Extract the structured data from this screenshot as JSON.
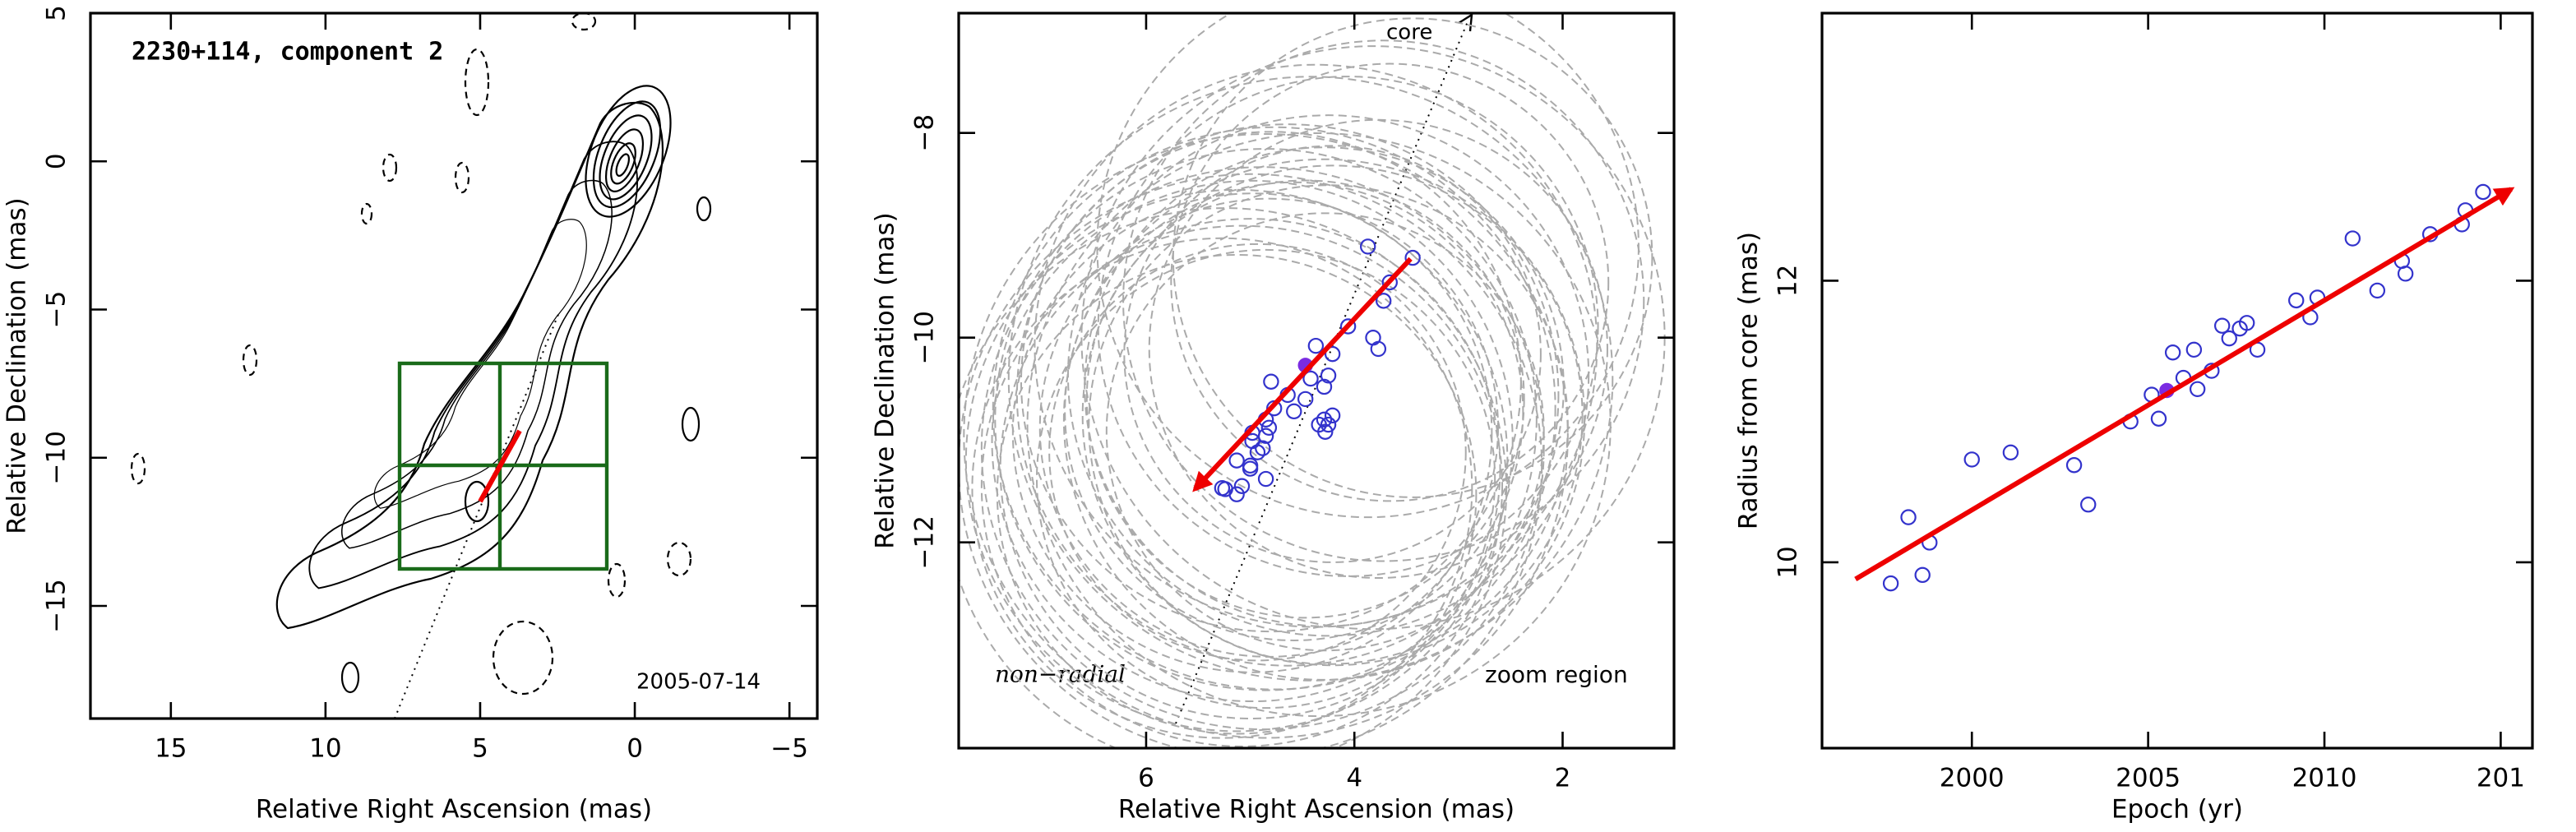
{
  "chart_data": [
    {
      "type": "map",
      "title": "2230+114, component 2",
      "annotation": "2005-07-14",
      "xlabel": "Relative Right Ascension (mas)",
      "ylabel": "Relative Declination (mas)",
      "xlim": [
        17.6,
        -5.9
      ],
      "ylim": [
        -18.8,
        5
      ],
      "xticks": [
        15,
        10,
        5,
        0,
        {
          "value": -5,
          "label": "−5"
        }
      ],
      "yticks": [
        5,
        0,
        {
          "value": -5,
          "label": "−5"
        },
        {
          "value": -10,
          "label": "−10"
        },
        {
          "value": -15,
          "label": "−15"
        }
      ]
    },
    {
      "type": "scatter",
      "xlabel": "Relative Right Ascension (mas)",
      "ylabel": "Relative Declination (mas)",
      "annotations": [
        "core",
        "non−radial",
        "zoom region"
      ],
      "xlim": [
        7.8,
        0.93
      ],
      "ylim": [
        -14.01,
        -6.83
      ],
      "xticks": [
        6,
        4,
        2
      ],
      "yticks": [
        {
          "value": -8,
          "label": "−8"
        },
        {
          "value": -10,
          "label": "−10"
        },
        {
          "value": -12,
          "label": "−12"
        }
      ],
      "color": "#3333cc",
      "size_color": "#aaaaaa",
      "x": [
        3.44,
        3.87,
        3.66,
        3.72,
        3.82,
        3.77,
        4.06,
        4.37,
        4.21,
        4.25,
        4.29,
        4.42,
        4.47,
        4.64,
        4.8,
        4.58,
        4.77,
        4.29,
        4.25,
        4.34,
        4.28,
        4.21,
        4.85,
        4.82,
        4.85,
        4.98,
        4.98,
        4.88,
        4.93,
        5.0,
        5.13,
        5.0,
        4.85,
        5.08,
        5.13,
        5.24,
        5.27
      ],
      "y": [
        -9.22,
        -9.11,
        -9.46,
        -9.64,
        -10.0,
        -10.11,
        -9.89,
        -10.08,
        -10.16,
        -10.37,
        -10.48,
        -10.4,
        -10.6,
        -10.56,
        -10.43,
        -10.72,
        -10.69,
        -10.8,
        -10.85,
        -10.85,
        -10.92,
        -10.76,
        -10.8,
        -10.88,
        -10.96,
        -11.01,
        -10.93,
        -11.08,
        -11.12,
        -11.28,
        -11.2,
        -11.25,
        -11.38,
        -11.45,
        -11.53,
        -11.48,
        -11.47
      ],
      "sizes": [
        2.3,
        2.6,
        2.1,
        2.5,
        2.8,
        2.2,
        2.4,
        2.7,
        2.0,
        2.5,
        2.3,
        2.9,
        2.1,
        2.6,
        2.4,
        2.2,
        2.7,
        2.5,
        2.3,
        2.8,
        2.1,
        2.4,
        2.6,
        2.2,
        2.9,
        2.5,
        2.3,
        2.7,
        2.0,
        2.4,
        2.6,
        2.8,
        2.2,
        2.5,
        2.3,
        2.7,
        2.4
      ],
      "highlight": {
        "x": 4.47,
        "y": -10.27,
        "color": "#7b2be2"
      },
      "fit": {
        "x": [
          3.46,
          5.53
        ],
        "y": [
          -9.23,
          -11.48
        ],
        "color": "#ee0000"
      }
    },
    {
      "type": "scatter",
      "xlabel": "Epoch (yr)",
      "ylabel": "Radius from core (mas)",
      "xlim": [
        1995.75,
        2015.9
      ],
      "ylim": [
        8.68,
        13.9
      ],
      "xticks": [
        2000,
        2005,
        2010,
        {
          "value": 2015,
          "label": "201"
        }
      ],
      "yticks": [
        10,
        12
      ],
      "color": "#3333cc",
      "x": [
        1997.7,
        1998.2,
        1998.6,
        1998.8,
        2000.0,
        2001.1,
        2002.9,
        2003.3,
        2004.5,
        2005.1,
        2005.3,
        2005.7,
        2006.0,
        2006.3,
        2006.4,
        2006.8,
        2007.1,
        2007.3,
        2007.6,
        2007.8,
        2008.1,
        2009.2,
        2009.6,
        2009.8,
        2010.8,
        2011.5,
        2012.2,
        2012.3,
        2013.0,
        2013.9,
        2014.0,
        2014.5
      ],
      "y": [
        9.85,
        10.32,
        9.91,
        10.14,
        10.73,
        10.78,
        10.69,
        10.41,
        11.0,
        11.19,
        11.02,
        11.49,
        11.31,
        11.51,
        11.23,
        11.36,
        11.68,
        11.59,
        11.66,
        11.7,
        11.51,
        11.86,
        11.74,
        11.88,
        12.3,
        11.93,
        12.14,
        12.05,
        12.33,
        12.4,
        12.5,
        12.63
      ],
      "highlight": {
        "x": 2005.53,
        "y": 11.22,
        "color": "#7b2be2"
      },
      "fit": {
        "x": [
          1996.7,
          2015.3
        ],
        "y": [
          9.88,
          12.65
        ],
        "color": "#ee0000"
      }
    }
  ]
}
